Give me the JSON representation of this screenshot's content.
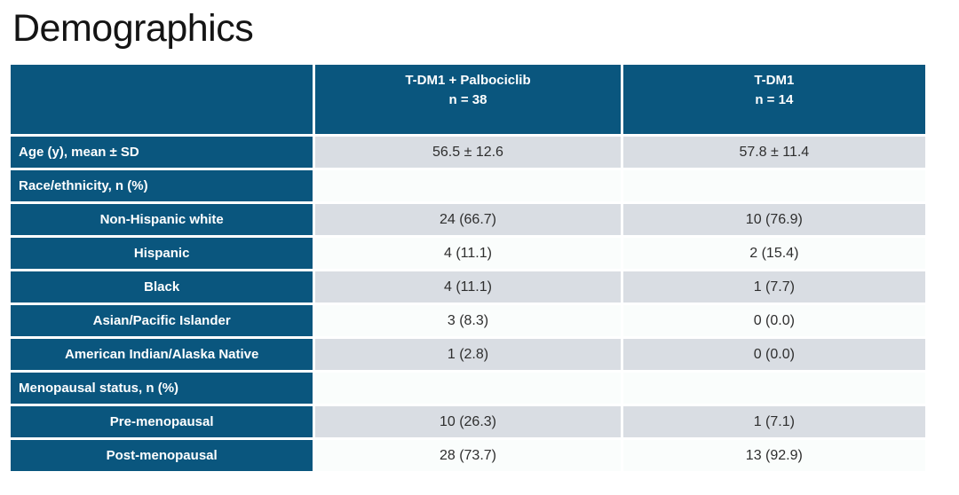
{
  "title": "Demographics",
  "colors": {
    "header_blue": "#0a567e",
    "row_gray": "#d9dde3",
    "row_white": "#fafdfc"
  },
  "table": {
    "header": {
      "arm1": {
        "name": "T-DM1 + Palbociclib",
        "n": "n = 38"
      },
      "arm2": {
        "name": "T-DM1",
        "n": "n = 14"
      }
    },
    "rows": [
      {
        "label": "Age (y), mean ± SD",
        "v1": "56.5 ± 12.6",
        "v2": "57.8 ± 11.4"
      },
      {
        "label": "Race/ethnicity, n (%)",
        "v1": "",
        "v2": ""
      },
      {
        "label": "Non-Hispanic white",
        "v1": "24 (66.7)",
        "v2": "10 (76.9)"
      },
      {
        "label": "Hispanic",
        "v1": "4 (11.1)",
        "v2": "2 (15.4)"
      },
      {
        "label": "Black",
        "v1": "4 (11.1)",
        "v2": "1 (7.7)"
      },
      {
        "label": "Asian/Pacific Islander",
        "v1": "3 (8.3)",
        "v2": "0 (0.0)"
      },
      {
        "label": "American Indian/Alaska Native",
        "v1": "1 (2.8)",
        "v2": "0 (0.0)"
      },
      {
        "label": "Menopausal status, n (%)",
        "v1": "",
        "v2": ""
      },
      {
        "label": "Pre-menopausal",
        "v1": "10 (26.3)",
        "v2": "1 (7.1)"
      },
      {
        "label": "Post-menopausal",
        "v1": "28 (73.7)",
        "v2": "13 (92.9)"
      }
    ]
  }
}
